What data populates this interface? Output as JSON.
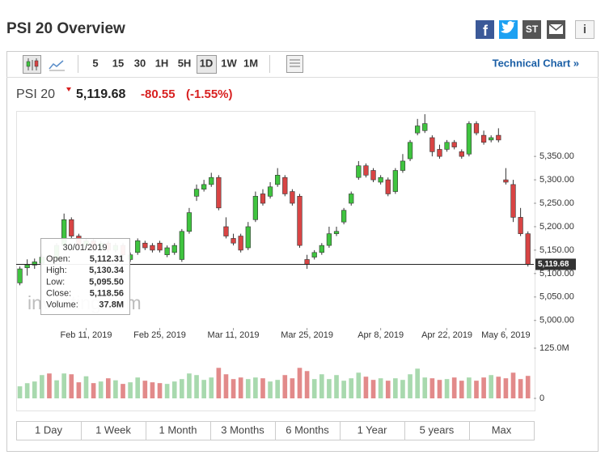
{
  "header": {
    "title": "PSI 20 Overview",
    "icons": [
      "f",
      "ST",
      "i"
    ]
  },
  "toolbar": {
    "intervals": [
      "5",
      "15",
      "30",
      "1H",
      "5H",
      "1D",
      "1W",
      "1M"
    ],
    "technical_chart": "Technical Chart »"
  },
  "quote": {
    "name": "PSI 20",
    "price": "5,119.68",
    "change": -80.55,
    "change_percent": {
      "value": -1.55,
      "label": "(-1.55%)"
    }
  },
  "tooltip": {
    "date": "30/01/2019",
    "rows": [
      {
        "label": "Open:",
        "value": "5,112.31"
      },
      {
        "label": "High:",
        "value": "5,130.34"
      },
      {
        "label": "Low:",
        "value": "5,095.50"
      },
      {
        "label": "Close:",
        "value": "5,118.56"
      },
      {
        "label": "Volume:",
        "value": "37.8M"
      }
    ]
  },
  "watermark": "investing.com",
  "ranges": [
    "1 Day",
    "1 Week",
    "1 Month",
    "3 Months",
    "6 Months",
    "1 Year",
    "5 years",
    "Max"
  ],
  "chart_data": {
    "type": "candlestick",
    "up_color": "#3fc43f",
    "down_color": "#d84444",
    "volume_up_color": "#a8d9ae",
    "volume_down_color": "#e28a8a",
    "xlim": [
      -0.5,
      69.8
    ],
    "xticks": [
      {
        "value": 9,
        "label": "Feb 11, 2019"
      },
      {
        "value": 19,
        "label": "Feb 25, 2019"
      },
      {
        "value": 29,
        "label": "Mar 11, 2019"
      },
      {
        "value": 39,
        "label": "Mar 25, 2019"
      },
      {
        "value": 49,
        "label": "Apr 8, 2019"
      },
      {
        "value": 58,
        "label": "Apr 22, 2019"
      },
      {
        "value": 66,
        "label": "May 6, 2019"
      }
    ],
    "ylim": [
      4984,
      5447
    ],
    "yticks": [
      {
        "value": 5000,
        "label": "5,000.00"
      },
      {
        "value": 5050,
        "label": "5,050.00"
      },
      {
        "value": 5100,
        "label": "5,100.00"
      },
      {
        "value": 5150,
        "label": "5,150.00"
      },
      {
        "value": 5200,
        "label": "5,200.00"
      },
      {
        "value": 5250,
        "label": "5,250.00"
      },
      {
        "value": 5300,
        "label": "5,300.00"
      },
      {
        "value": 5350,
        "label": "5,350.00"
      }
    ],
    "last_price": {
      "value": 5119.68,
      "label": "5,119.68"
    },
    "volume_ylim": [
      0,
      125
    ],
    "volume_yticks": [
      {
        "value": 125,
        "label": "125.0M"
      },
      0
    ],
    "open": [
      5080,
      5112.31,
      5118,
      5122,
      5135,
      5130,
      5160,
      5215,
      5180,
      5160,
      5170,
      5150,
      5165,
      5150,
      5160,
      5130,
      5145,
      5165,
      5160,
      5165,
      5140,
      5145,
      5130,
      5190,
      5265,
      5280,
      5290,
      5305,
      5200,
      5175,
      5180,
      5155,
      5215,
      5270,
      5265,
      5290,
      5305,
      5275,
      5265,
      5130,
      5135,
      5145,
      5160,
      5185,
      5210,
      5250,
      5305,
      5330,
      5320,
      5295,
      5300,
      5275,
      5320,
      5345,
      5400,
      5405,
      5390,
      5365,
      5365,
      5380,
      5360,
      5355,
      5420,
      5395,
      5385,
      5395,
      5300,
      5290,
      5220,
      5185
    ],
    "high": [
      5115,
      5130.34,
      5132,
      5142,
      5140,
      5165,
      5228,
      5220,
      5185,
      5175,
      5175,
      5170,
      5170,
      5165,
      5165,
      5145,
      5175,
      5170,
      5165,
      5170,
      5160,
      5165,
      5195,
      5240,
      5290,
      5300,
      5315,
      5310,
      5220,
      5185,
      5185,
      5210,
      5275,
      5280,
      5295,
      5325,
      5310,
      5280,
      5270,
      5140,
      5150,
      5165,
      5200,
      5200,
      5240,
      5275,
      5340,
      5335,
      5325,
      5310,
      5305,
      5325,
      5355,
      5385,
      5430,
      5440,
      5395,
      5375,
      5385,
      5385,
      5365,
      5425,
      5425,
      5405,
      5395,
      5410,
      5325,
      5300,
      5240,
      5190
    ],
    "low": [
      5075,
      5095.5,
      5110,
      5118,
      5125,
      5125,
      5155,
      5175,
      5155,
      5155,
      5145,
      5145,
      5145,
      5145,
      5135,
      5125,
      5140,
      5150,
      5145,
      5145,
      5135,
      5140,
      5125,
      5185,
      5255,
      5275,
      5285,
      5235,
      5175,
      5160,
      5145,
      5150,
      5210,
      5245,
      5260,
      5285,
      5265,
      5245,
      5155,
      5110,
      5130,
      5140,
      5155,
      5180,
      5205,
      5245,
      5300,
      5305,
      5295,
      5290,
      5265,
      5270,
      5315,
      5340,
      5395,
      5400,
      5350,
      5345,
      5360,
      5365,
      5345,
      5350,
      5395,
      5375,
      5380,
      5380,
      5290,
      5210,
      5180,
      5115
    ],
    "close": [
      5110,
      5118.56,
      5125,
      5135,
      5130,
      5160,
      5215,
      5180,
      5160,
      5170,
      5150,
      5165,
      5150,
      5160,
      5140,
      5140,
      5170,
      5155,
      5150,
      5150,
      5155,
      5160,
      5190,
      5230,
      5280,
      5290,
      5305,
      5240,
      5180,
      5165,
      5150,
      5200,
      5265,
      5250,
      5285,
      5310,
      5270,
      5250,
      5160,
      5120,
      5145,
      5160,
      5185,
      5190,
      5235,
      5270,
      5330,
      5310,
      5300,
      5305,
      5270,
      5320,
      5340,
      5380,
      5415,
      5420,
      5360,
      5350,
      5380,
      5370,
      5350,
      5420,
      5400,
      5380,
      5390,
      5385,
      5295,
      5220,
      5185,
      5119.68
    ],
    "volume": [
      30,
      37.8,
      42,
      58,
      62,
      45,
      62,
      60,
      40,
      55,
      38,
      42,
      50,
      45,
      36,
      40,
      52,
      44,
      40,
      38,
      36,
      42,
      48,
      62,
      58,
      46,
      52,
      76,
      60,
      48,
      52,
      48,
      52,
      50,
      42,
      46,
      58,
      50,
      76,
      68,
      48,
      60,
      48,
      58,
      44,
      50,
      64,
      54,
      46,
      50,
      44,
      50,
      46,
      60,
      74,
      52,
      50,
      46,
      48,
      52,
      44,
      52,
      44,
      52,
      58,
      54,
      50,
      64,
      48,
      56
    ]
  }
}
